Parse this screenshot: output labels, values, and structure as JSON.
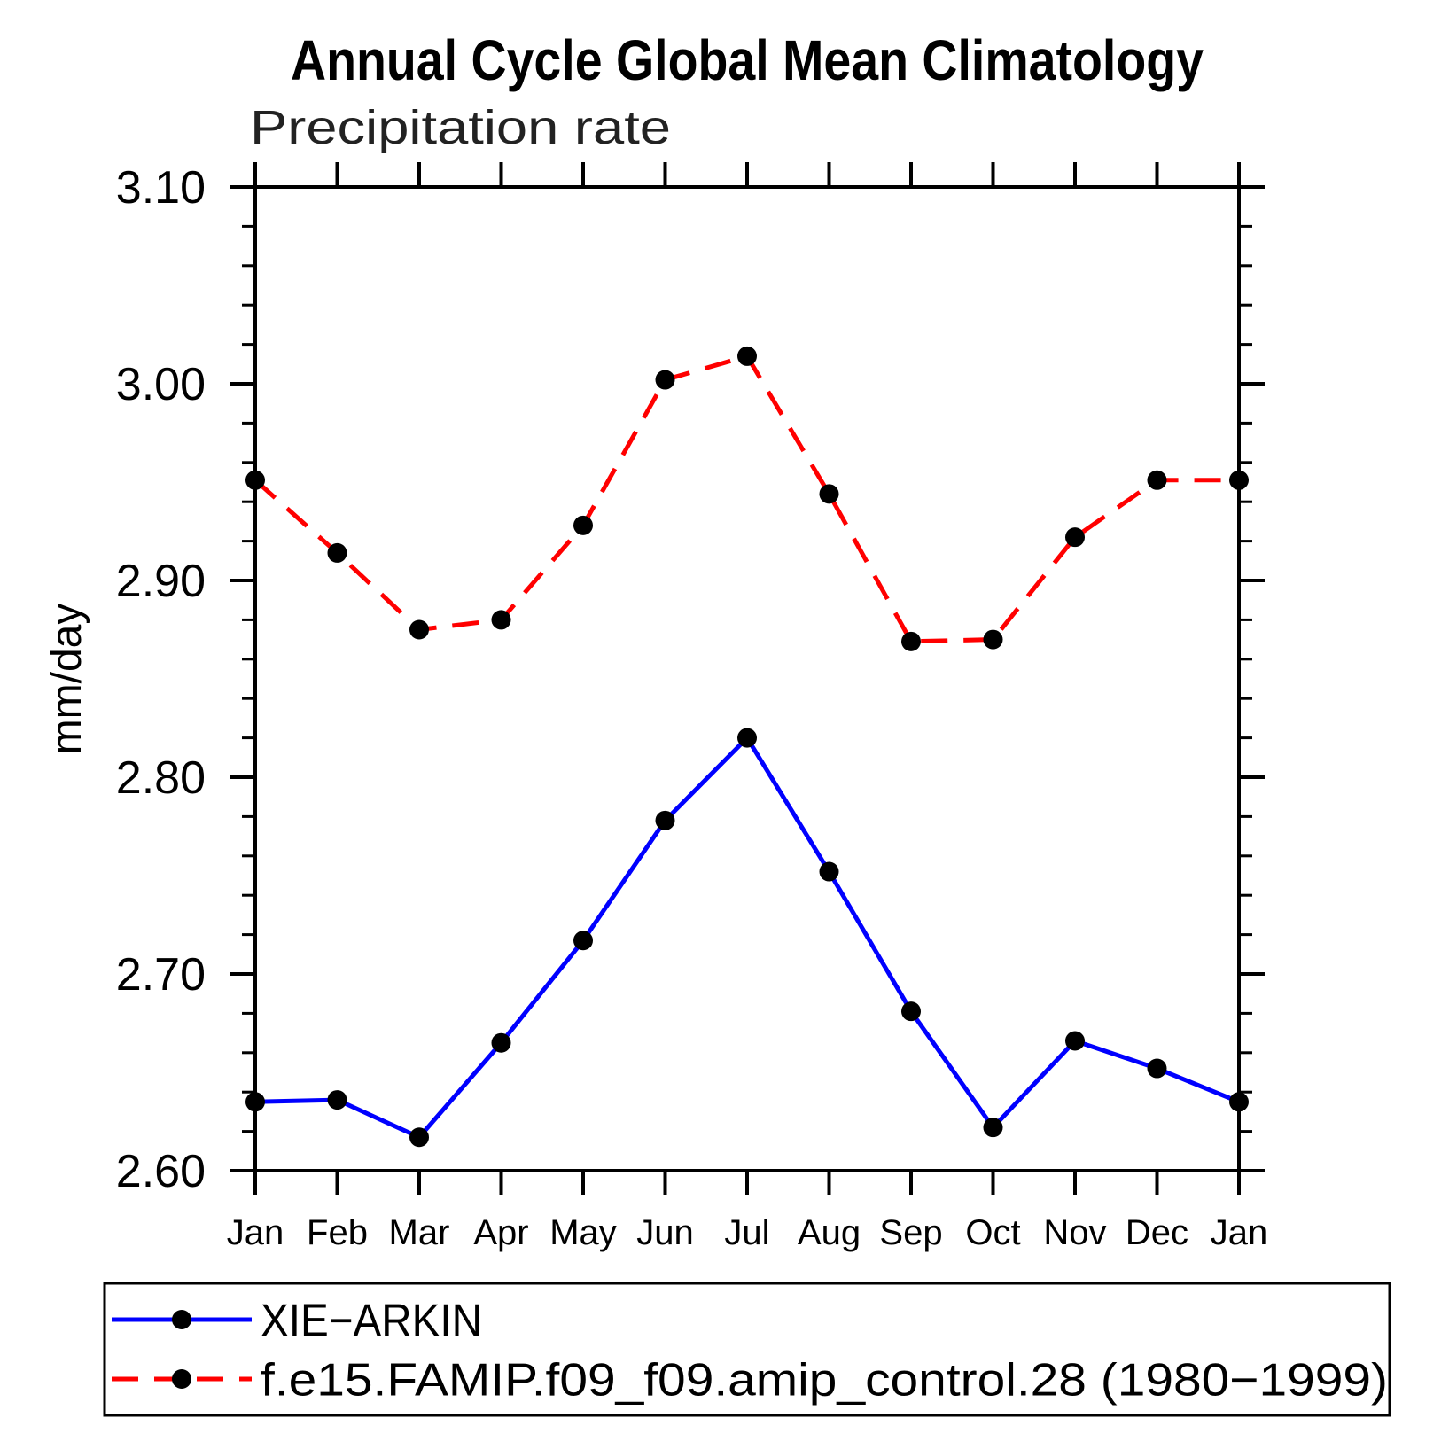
{
  "chart_data": {
    "type": "line",
    "title": "Annual Cycle Global Mean Climatology",
    "subtitle": "Precipitation rate",
    "ylabel": "mm/day",
    "ylim": [
      2.6,
      3.1
    ],
    "ytick_labels": [
      "2.60",
      "2.70",
      "2.80",
      "2.90",
      "3.00",
      "3.10"
    ],
    "ytick_minor_step": 0.02,
    "categories": [
      "Jan",
      "Feb",
      "Mar",
      "Apr",
      "May",
      "Jun",
      "Jul",
      "Aug",
      "Sep",
      "Oct",
      "Nov",
      "Dec",
      "Jan"
    ],
    "series": [
      {
        "name": "XIE−ARKIN",
        "color": "#0000ff",
        "marker_color": "#000000",
        "style": "solid",
        "values": [
          2.635,
          2.636,
          2.617,
          2.665,
          2.717,
          2.778,
          2.82,
          2.752,
          2.681,
          2.622,
          2.666,
          2.652,
          2.635
        ]
      },
      {
        "name": "f.e15.FAMIP.f09_f09.amip_control.28 (1980−1999)",
        "color": "#ff0000",
        "marker_color": "#000000",
        "style": "dashed",
        "values": [
          2.951,
          2.914,
          2.875,
          2.88,
          2.928,
          3.002,
          3.014,
          2.944,
          2.869,
          2.87,
          2.922,
          2.951,
          2.951
        ]
      }
    ],
    "legend_position": "bottom",
    "grid": false
  }
}
